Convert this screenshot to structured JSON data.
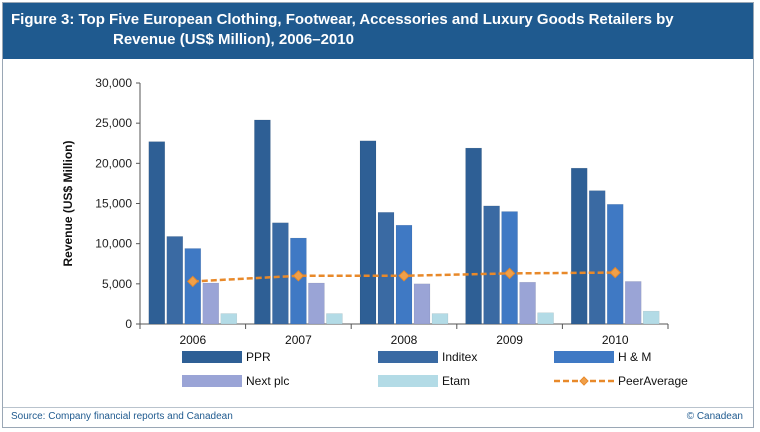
{
  "header": {
    "title_line1": "Figure 3: Top Five European Clothing, Footwear, Accessories and Luxury Goods Retailers by",
    "title_line2": "Revenue (US$ Million), 2006–2010"
  },
  "footer": {
    "source": "Source: Company financial reports and Canadean",
    "copyright": "© Canadean"
  },
  "colors": {
    "title_bg": "#1f5a8f",
    "PPR": "#2e5f95",
    "Inditex": "#3a6aa3",
    "HM": "#3f79c4",
    "Next": "#9aa4d6",
    "Etam": "#b3dbe6",
    "PeerAverage": "#e8892a"
  },
  "chart_data": {
    "type": "bar",
    "title": "Figure 3: Top Five European Clothing, Footwear, Accessories and Luxury Goods Retailers by Revenue (US$ Million), 2006–2010",
    "xlabel": "",
    "ylabel": "Revenue (US$ Million)",
    "ylim": [
      0,
      30000
    ],
    "yticks": [
      "0",
      "5,000",
      "10,000",
      "15,000",
      "20,000",
      "25,000",
      "30,000"
    ],
    "categories": [
      "2006",
      "2007",
      "2008",
      "2009",
      "2010"
    ],
    "series": [
      {
        "name": "PPR",
        "values": [
          22700,
          25400,
          22800,
          21900,
          19400
        ]
      },
      {
        "name": "Inditex",
        "values": [
          10900,
          12600,
          13900,
          14700,
          16600
        ]
      },
      {
        "name": "H & M",
        "values": [
          9400,
          10700,
          12300,
          14000,
          14900
        ]
      },
      {
        "name": "Next plc",
        "values": [
          5100,
          5100,
          5000,
          5200,
          5300
        ]
      },
      {
        "name": "Etam",
        "values": [
          1300,
          1300,
          1300,
          1400,
          1600
        ]
      }
    ],
    "line_series": [
      {
        "name": "PeerAverage",
        "values": [
          5300,
          6000,
          6000,
          6300,
          6400
        ]
      }
    ],
    "legend_position": "bottom"
  }
}
